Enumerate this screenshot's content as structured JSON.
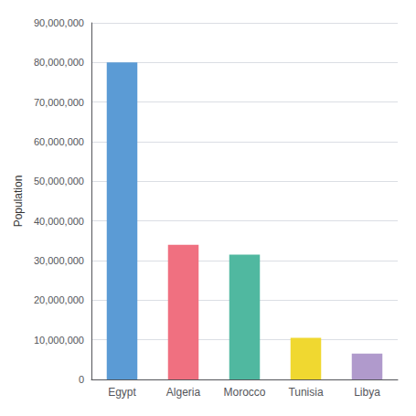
{
  "chart_data": {
    "type": "bar",
    "categories": [
      "Egypt",
      "Algeria",
      "Morocco",
      "Tunisia",
      "Libya"
    ],
    "values": [
      80000000,
      34000000,
      31500000,
      10500000,
      6500000
    ],
    "colors": [
      "#5b9bd5",
      "#f07080",
      "#50b8a0",
      "#f0d830",
      "#b09acc"
    ],
    "ylabel": "Population",
    "ylim": [
      0,
      90000000
    ],
    "yticks": [
      0,
      {
        "value": 10000000,
        "label": "10,000,000"
      },
      {
        "value": 20000000,
        "label": "20,000,000"
      },
      {
        "value": 30000000,
        "label": "30,000,000"
      },
      {
        "value": 40000000,
        "label": "40,000,000"
      },
      {
        "value": 50000000,
        "label": "50,000,000"
      },
      {
        "value": 60000000,
        "label": "60,000,000"
      },
      {
        "value": 70000000,
        "label": "70,000,000"
      },
      {
        "value": 80000000,
        "label": "80,000,000"
      },
      {
        "value": 90000000,
        "label": "90,000,000"
      }
    ],
    "grid": true
  }
}
